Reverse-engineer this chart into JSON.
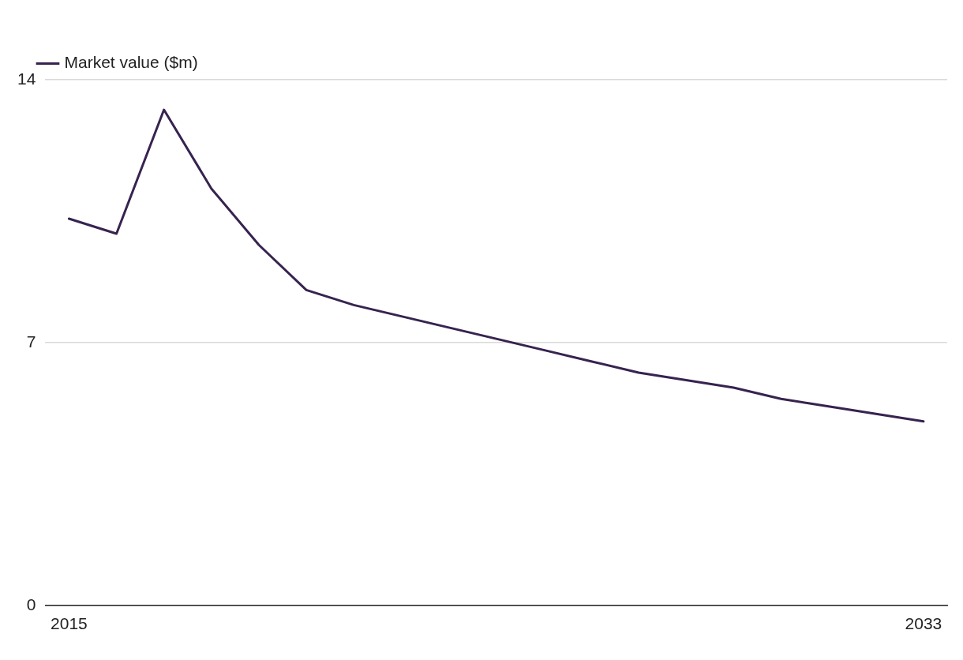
{
  "chart_data": {
    "type": "line",
    "categories": [
      "2015",
      null,
      null,
      null,
      null,
      null,
      null,
      null,
      null,
      null,
      null,
      null,
      null,
      null,
      null,
      null,
      null,
      null,
      "2033"
    ],
    "series": [
      {
        "name": "Market value ($m)",
        "color": "#37234f",
        "values": [
          10.3,
          9.9,
          13.2,
          11.1,
          9.6,
          8.4,
          8.0,
          7.7,
          7.4,
          7.1,
          6.8,
          6.5,
          6.2,
          6.0,
          5.8,
          5.5,
          5.3,
          5.1,
          4.9
        ]
      }
    ],
    "ylim": [
      0,
      14
    ],
    "yticks": [
      0,
      7,
      14
    ],
    "grid": "y",
    "legend": "top left",
    "marker": "none",
    "line_style": "solid"
  }
}
